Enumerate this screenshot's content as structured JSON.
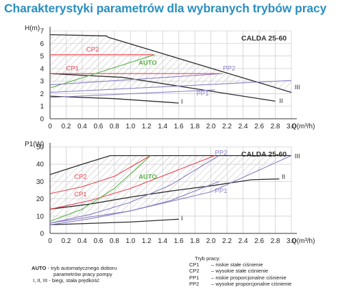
{
  "title": "Charakterystyki parametrów dla wybranych trybów pracy",
  "colors": {
    "title": "#2a8fc0",
    "red": "#e8424f",
    "green": "#5bb34a",
    "purple": "#8a7fc4",
    "dark": "#2b2b2b",
    "grid": "#cfcfcf",
    "hatch": "#b8b8b8"
  },
  "chart_data": [
    {
      "type": "line",
      "title": "CALDA 25-60",
      "ylabel": "H(m)",
      "xlabel": "Q(m³/h)",
      "xlim": [
        0,
        3.0
      ],
      "ylim": [
        0,
        7
      ],
      "xticks": [
        "0",
        "0.2",
        "0.4",
        "0.6",
        "0.8",
        "1.0",
        "1.2",
        "1.4",
        "1.6",
        "1.8",
        "2.0",
        "2.2",
        "2.4",
        "2.6",
        "2.8",
        "3.0"
      ],
      "yticks": [
        "0",
        "1",
        "2",
        "3",
        "4",
        "5",
        "6",
        "7"
      ],
      "series": [
        {
          "name": "III",
          "color": "dark",
          "x": [
            0,
            0.7,
            0.72,
            3.0
          ],
          "y": [
            6.7,
            6.6,
            6.5,
            2.1
          ]
        },
        {
          "name": "II",
          "color": "dark",
          "x": [
            0,
            0.9,
            2.8
          ],
          "y": [
            3.6,
            3.3,
            1.4
          ]
        },
        {
          "name": "I",
          "color": "dark",
          "x": [
            0,
            0.8,
            1.6
          ],
          "y": [
            1.8,
            1.6,
            1.25
          ]
        },
        {
          "name": "CP2",
          "color": "red",
          "x": [
            0,
            1.3
          ],
          "y": [
            5.1,
            5.1
          ]
        },
        {
          "name": "CP1",
          "color": "red",
          "x": [
            0,
            2.1
          ],
          "y": [
            3.6,
            3.6
          ]
        },
        {
          "name": "AUTO",
          "color": "green",
          "x": [
            0,
            1.3
          ],
          "y": [
            2.45,
            5.1
          ]
        },
        {
          "name": "PP2",
          "color": "purple",
          "x": [
            0,
            2.15
          ],
          "y": [
            2.7,
            3.6
          ]
        },
        {
          "name": "PP1",
          "color": "purple",
          "x": [
            0,
            2.05
          ],
          "y": [
            1.7,
            2.3
          ]
        },
        {
          "name": "",
          "color": "purple",
          "x": [
            0,
            3.0
          ],
          "y": [
            2.1,
            3.05
          ]
        }
      ],
      "labels": [
        {
          "text": "CP2",
          "x": 0.45,
          "y": 5.35,
          "color": "red"
        },
        {
          "text": "CP1",
          "x": 0.2,
          "y": 3.85,
          "color": "red"
        },
        {
          "text": "AUTO",
          "x": 1.1,
          "y": 4.3,
          "color": "green"
        },
        {
          "text": "PP2",
          "x": 2.15,
          "y": 3.85,
          "color": "purple"
        },
        {
          "text": "PP1",
          "x": 1.82,
          "y": 1.85,
          "color": "purple"
        },
        {
          "text": "III",
          "x": 3.04,
          "y": 2.35,
          "color": "dark"
        },
        {
          "text": "II",
          "x": 2.85,
          "y": 1.25,
          "color": "dark"
        },
        {
          "text": "I",
          "x": 1.63,
          "y": 1.2,
          "color": "dark"
        }
      ]
    },
    {
      "type": "line",
      "title": "CALDA 25-60",
      "ylabel": "P1(W)",
      "xlabel": "Q(m³/h)",
      "xlim": [
        0,
        3.0
      ],
      "ylim": [
        0,
        50
      ],
      "xticks": [
        "0",
        "0.2",
        "0.4",
        "0.6",
        "0.8",
        "1.0",
        "1.2",
        "1.4",
        "1.6",
        "1.8",
        "2.0",
        "2.2",
        "2.4",
        "2.6",
        "2.8",
        "3.0"
      ],
      "yticks": [
        "0",
        "10",
        "20",
        "30",
        "40",
        "50"
      ],
      "series": [
        {
          "name": "III",
          "color": "dark",
          "x": [
            0,
            0.4,
            0.75,
            3.0
          ],
          "y": [
            34,
            40,
            45,
            45
          ]
        },
        {
          "name": "II",
          "color": "dark",
          "x": [
            0,
            0.5,
            1.0,
            1.5,
            2.0,
            2.5,
            2.85
          ],
          "y": [
            14,
            17,
            21,
            24.5,
            27.5,
            31,
            31.5
          ]
        },
        {
          "name": "I",
          "color": "dark",
          "x": [
            0,
            0.5,
            1.0,
            1.6
          ],
          "y": [
            5,
            5.8,
            6.6,
            8.2
          ]
        },
        {
          "name": "CP2",
          "color": "red",
          "x": [
            0,
            0.4,
            0.8,
            1.25
          ],
          "y": [
            23,
            27,
            33,
            45
          ]
        },
        {
          "name": "CP1",
          "color": "red",
          "x": [
            0,
            0.5,
            1.0,
            1.5,
            2.05
          ],
          "y": [
            14,
            19,
            26,
            35,
            45
          ]
        },
        {
          "name": "AUTO",
          "color": "green",
          "x": [
            0,
            0.4,
            0.8,
            1.25
          ],
          "y": [
            7,
            14,
            26,
            45
          ]
        },
        {
          "name": "PP2",
          "color": "purple",
          "x": [
            0,
            0.5,
            1.0,
            1.5,
            2.1
          ],
          "y": [
            6,
            11,
            18,
            28,
            45
          ]
        },
        {
          "name": "PP1",
          "color": "purple",
          "x": [
            0,
            0.5,
            1.0,
            1.5,
            2.1
          ],
          "y": [
            5,
            8.5,
            13,
            19,
            30
          ]
        },
        {
          "name": "",
          "color": "purple",
          "x": [
            0,
            1.0,
            2.0,
            3.0
          ],
          "y": [
            6,
            13,
            24,
            45
          ]
        }
      ],
      "labels": [
        {
          "text": "CP2",
          "x": 0.3,
          "y": 31.5,
          "color": "red"
        },
        {
          "text": "CP1",
          "x": 0.3,
          "y": 21.5,
          "color": "red"
        },
        {
          "text": "AUTO",
          "x": 1.1,
          "y": 31.5,
          "color": "green"
        },
        {
          "text": "PP2",
          "x": 2.05,
          "y": 45.5,
          "color": "purple"
        },
        {
          "text": "PP1",
          "x": 2.05,
          "y": 23.5,
          "color": "purple"
        },
        {
          "text": "III",
          "x": 3.04,
          "y": 43.5,
          "color": "dark"
        },
        {
          "text": "II",
          "x": 2.88,
          "y": 31.5,
          "color": "dark"
        },
        {
          "text": "I",
          "x": 1.63,
          "y": 7.5,
          "color": "dark"
        }
      ]
    }
  ],
  "legend_left": [
    {
      "key": "AUTO",
      "text": "- tryb automatycznego doboru"
    },
    {
      "key": "",
      "text": "parametrów pracy pompy"
    },
    {
      "key": "I, II, III",
      "text": "- biegi, stała prędkość"
    }
  ],
  "legend_right": {
    "title": "Tryb pracy:",
    "rows": [
      {
        "key": "CP1",
        "text": "– niskie stałe ciśnienie"
      },
      {
        "key": "CP2",
        "text": "– wysokie stałe ciśnienie"
      },
      {
        "key": "PP1",
        "text": "– niskie proporcjonalne ciśnienie"
      },
      {
        "key": "PP2",
        "text": "– wysokie proporcjonalne ciśnienie"
      }
    ]
  }
}
